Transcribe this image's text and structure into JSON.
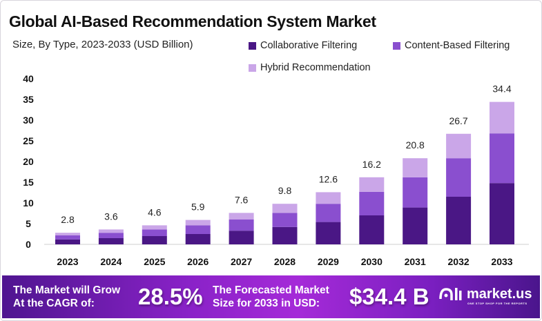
{
  "chart_data": {
    "type": "bar",
    "stacked": true,
    "title": "Global AI-Based Recommendation System Market",
    "subtitle": "Size, By Type, 2023-2033 (USD Billion)",
    "categories": [
      "2023",
      "2024",
      "2025",
      "2026",
      "2027",
      "2028",
      "2029",
      "2030",
      "2031",
      "2032",
      "2033"
    ],
    "totals": [
      2.8,
      3.6,
      4.6,
      5.9,
      7.6,
      9.8,
      12.6,
      16.2,
      20.8,
      26.7,
      34.4
    ],
    "total_labels": [
      "2.8",
      "3.6",
      "4.6",
      "5.9",
      "7.6",
      "9.8",
      "12.6",
      "16.2",
      "20.8",
      "26.7",
      "34.4"
    ],
    "series": [
      {
        "name": "Collaborative Filtering",
        "color": "#4a1785",
        "values": [
          1.2,
          1.5,
          2.0,
          2.5,
          3.3,
          4.2,
          5.4,
          7.0,
          8.9,
          11.5,
          14.8
        ]
      },
      {
        "name": "Content-Based Filtering",
        "color": "#8a4fcf",
        "values": [
          1.0,
          1.3,
          1.6,
          2.1,
          2.7,
          3.4,
          4.4,
          5.7,
          7.3,
          9.3,
          12.0
        ]
      },
      {
        "name": "Hybrid Recommendation",
        "color": "#caa6e8",
        "values": [
          0.6,
          0.8,
          1.0,
          1.3,
          1.6,
          2.2,
          2.8,
          3.5,
          4.6,
          5.9,
          7.6
        ]
      }
    ],
    "ylim": [
      0,
      40
    ],
    "yticks": [
      "0",
      "5",
      "10",
      "15",
      "20",
      "25",
      "30",
      "35",
      "40"
    ],
    "grid": false,
    "legend": "top-right"
  },
  "banner": {
    "cagr_text_1": "The Market will Grow",
    "cagr_text_2": "At the CAGR of:",
    "cagr_value": "28.5%",
    "forecast_text_1": "The Forecasted Market",
    "forecast_text_2": "Size for 2033 in USD:",
    "forecast_value": "$34.4 B",
    "logo_text": "market.us",
    "logo_tagline": "ONE STOP SHOP FOR THE REPORTS"
  }
}
